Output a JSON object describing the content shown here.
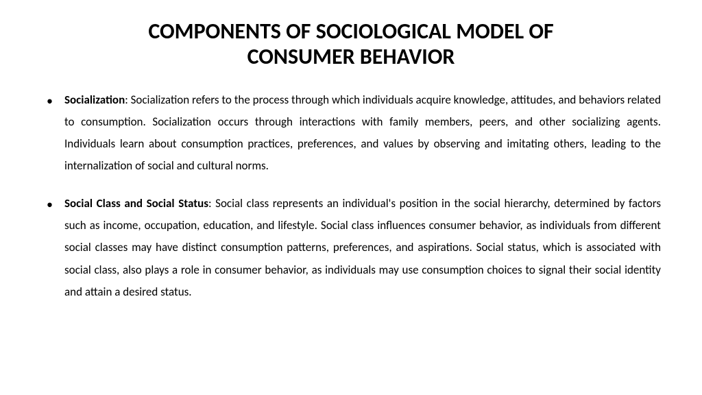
{
  "title_line1": "COMPONENTS OF SOCIOLOGICAL MODEL OF",
  "title_line2": "CONSUMER BEHAVIOR",
  "title_fontsize": "32px",
  "body_fontsize": "17px",
  "body_lineheight": "1.9",
  "text_color": "#000000",
  "background_color": "#ffffff",
  "bullets": [
    {
      "label": "Socialization",
      "text": ": Socialization refers to the process through which individuals acquire knowledge, attitudes, and behaviors related to consumption. Socialization occurs through interactions with family members, peers, and other socializing agents. Individuals learn about consumption practices, preferences, and values by observing and imitating others, leading to the internalization of social and cultural norms."
    },
    {
      "label": "Social Class and Social Status",
      "text": ": Social class represents an individual's position in the social hierarchy, determined by factors such as income, occupation, education, and lifestyle. Social class influences consumer behavior, as individuals from different social classes may have distinct consumption patterns, preferences, and aspirations. Social status, which is associated with social class, also plays a role in consumer behavior, as individuals may use consumption choices to signal their social identity and attain a desired status."
    }
  ]
}
